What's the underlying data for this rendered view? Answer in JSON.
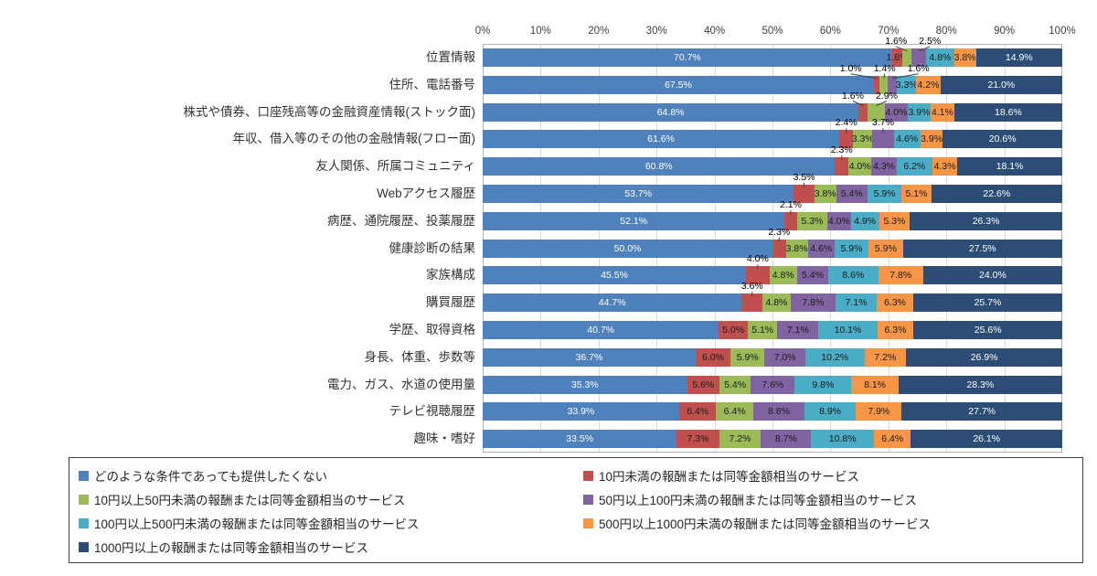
{
  "chart_data": {
    "type": "bar",
    "stacked": true,
    "orientation": "horizontal",
    "unit": "%",
    "x_axis": {
      "min": 0,
      "max": 100,
      "ticks": [
        "0%",
        "10%",
        "20%",
        "30%",
        "40%",
        "50%",
        "60%",
        "70%",
        "80%",
        "90%",
        "100%"
      ],
      "position": "top",
      "grid": true
    },
    "categories": [
      "位置情報",
      "住所、電話番号",
      "株式や債券、口座残高等の金融資産情報(ストック面)",
      "年収、借入等のその他の金融情報(フロー面)",
      "友人関係、所属コミュニティ",
      "Webアクセス履歴",
      "病歴、通院履歴、投薬履歴",
      "健康診断の結果",
      "家族構成",
      "購買履歴",
      "学歴、取得資格",
      "身長、体重、歩数等",
      "電力、ガス、水道の使用量",
      "テレビ視聴履歴",
      "趣味・嗜好"
    ],
    "series": [
      {
        "name": "どのような条件であっても提供したくない",
        "color": "#4F81BD",
        "values": [
          70.7,
          67.5,
          64.8,
          61.6,
          60.8,
          53.7,
          52.1,
          50.0,
          45.5,
          44.7,
          40.7,
          36.7,
          35.3,
          33.9,
          33.5
        ]
      },
      {
        "name": "10円未満の報酬または同等金額相当のサービス",
        "color": "#C0504D",
        "values": [
          1.8,
          1.0,
          1.6,
          2.4,
          2.3,
          3.5,
          2.1,
          2.3,
          4.0,
          3.6,
          5.0,
          6.0,
          5.6,
          6.4,
          7.3
        ]
      },
      {
        "name": "10円以上50円未満の報酬または同等金額相当のサービス",
        "color": "#9BBB59",
        "values": [
          1.6,
          1.4,
          2.9,
          3.3,
          4.0,
          3.8,
          5.3,
          3.8,
          4.8,
          4.8,
          5.1,
          5.9,
          5.4,
          6.4,
          7.2
        ]
      },
      {
        "name": "50円以上100円未満の報酬または同等金額相当のサービス",
        "color": "#8064A2",
        "values": [
          2.5,
          1.6,
          4.0,
          3.7,
          4.3,
          5.4,
          4.0,
          4.6,
          5.4,
          7.8,
          7.1,
          7.0,
          7.6,
          8.8,
          8.7
        ]
      },
      {
        "name": "100円以上500円未満の報酬または同等金額相当のサービス",
        "color": "#4BACC6",
        "values": [
          4.8,
          3.3,
          3.9,
          4.6,
          6.2,
          5.9,
          4.9,
          5.9,
          8.6,
          7.1,
          10.1,
          10.2,
          9.8,
          8.9,
          10.8
        ]
      },
      {
        "name": "500円以上1000円未満の報酬または同等金額相当のサービス",
        "color": "#F79646",
        "values": [
          3.8,
          4.2,
          4.1,
          3.9,
          4.3,
          5.1,
          5.3,
          5.9,
          7.8,
          6.3,
          6.3,
          7.2,
          8.1,
          7.9,
          6.4
        ]
      },
      {
        "name": "1000円以上の報酬または同等金額相当のサービス",
        "color": "#2C4D75",
        "values": [
          14.9,
          21.0,
          18.6,
          20.6,
          18.1,
          22.6,
          26.3,
          27.5,
          24.0,
          25.7,
          25.6,
          26.9,
          28.3,
          27.7,
          26.1
        ]
      }
    ],
    "callouts": [
      {
        "row": 0,
        "series": 2,
        "label": "1.6%"
      },
      {
        "row": 0,
        "series": 3,
        "label": "2.5%"
      },
      {
        "row": 1,
        "series": 1,
        "label": "1.0%"
      },
      {
        "row": 1,
        "series": 2,
        "label": "1.4%"
      },
      {
        "row": 1,
        "series": 3,
        "label": "1.6%"
      },
      {
        "row": 2,
        "series": 1,
        "label": "1.6%"
      },
      {
        "row": 2,
        "series": 2,
        "label": "2.9%"
      },
      {
        "row": 3,
        "series": 1,
        "label": "2.4%"
      },
      {
        "row": 3,
        "series": 3,
        "label": "3.7%"
      },
      {
        "row": 4,
        "series": 1,
        "label": "2.3%"
      },
      {
        "row": 5,
        "series": 1,
        "label": "3.5%"
      },
      {
        "row": 6,
        "series": 1,
        "label": "2.1%"
      },
      {
        "row": 7,
        "series": 1,
        "label": "2.3%"
      },
      {
        "row": 8,
        "series": 1,
        "label": "4.0%"
      },
      {
        "row": 9,
        "series": 1,
        "label": "3.6%"
      }
    ],
    "legend_position": "bottom",
    "colors": {
      "background": "#ffffff",
      "gridline": "#d9d9d9",
      "plot_border": "#b3b3b3",
      "legend_border": "#404040",
      "label_on_dark": "#ffffff",
      "label_on_light": "#1a1a1a"
    }
  }
}
